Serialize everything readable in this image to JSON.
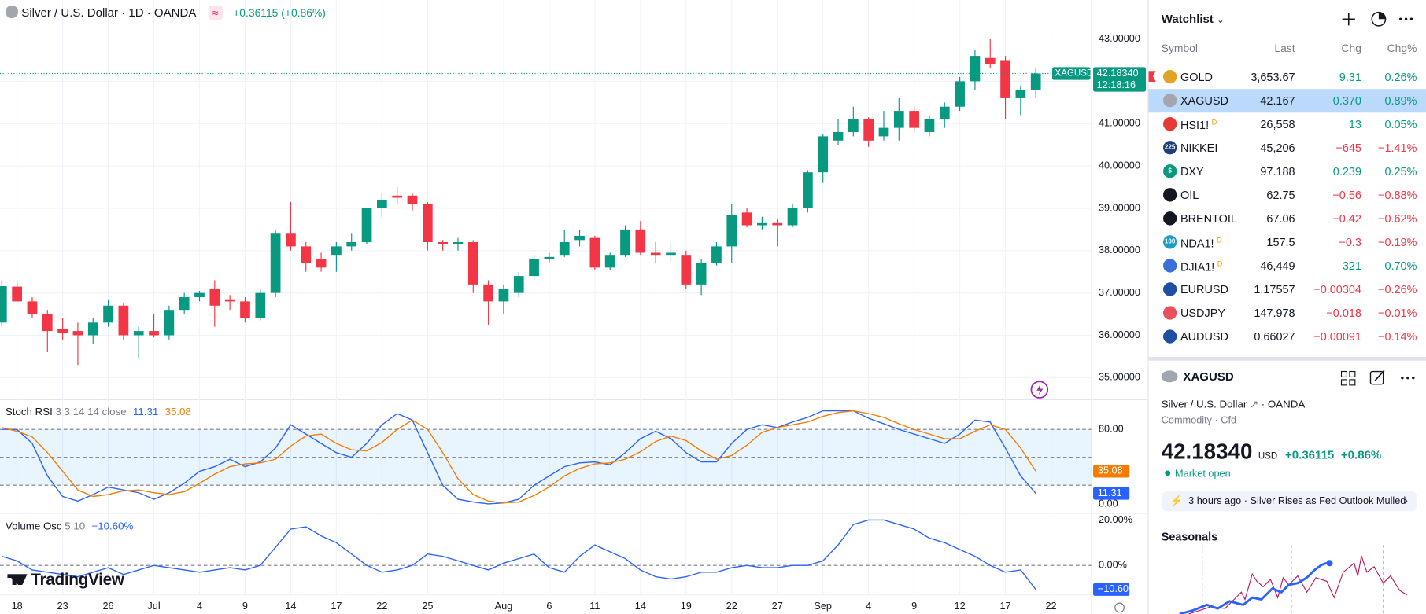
{
  "header": {
    "title": "Silver / U.S. Dollar · 1D · OANDA",
    "change": "+0.36115 (+0.86%)"
  },
  "logo": "TradingView",
  "chart_data": [
    {
      "type": "candlestick",
      "symbol": "XAGUSD",
      "countdown": "12:18:16",
      "up_color": "#089981",
      "down_color": "#f23645",
      "grid": true,
      "ylim": [
        34.48,
        43.92
      ],
      "yticks": [
        {
          "value": 35,
          "label": "35.00000"
        },
        {
          "value": 36,
          "label": "36.00000"
        },
        {
          "value": 37,
          "label": "37.00000"
        },
        {
          "value": 38,
          "label": "38.00000"
        },
        {
          "value": 39,
          "label": "39.00000"
        },
        {
          "value": 40,
          "label": "40.00000"
        },
        {
          "value": 41,
          "label": "41.00000"
        },
        {
          "value": 42,
          "label": "42.00000"
        },
        {
          "value": 43,
          "label": "43.00000"
        }
      ],
      "xlim": [
        -0.12,
        71.65
      ],
      "xticks": [
        {
          "value": 1,
          "label": "18"
        },
        {
          "value": 4,
          "label": "23"
        },
        {
          "value": 7,
          "label": "26"
        },
        {
          "value": 10,
          "label": "Jul"
        },
        {
          "value": 13,
          "label": "4"
        },
        {
          "value": 16,
          "label": "9"
        },
        {
          "value": 19,
          "label": "14"
        },
        {
          "value": 22,
          "label": "17"
        },
        {
          "value": 25,
          "label": "22"
        },
        {
          "value": 28,
          "label": "25"
        },
        {
          "value": 33,
          "label": "Aug"
        },
        {
          "value": 36,
          "label": "6"
        },
        {
          "value": 39,
          "label": "11"
        },
        {
          "value": 42,
          "label": "14"
        },
        {
          "value": 45,
          "label": "19"
        },
        {
          "value": 48,
          "label": "22"
        },
        {
          "value": 51,
          "label": "27"
        },
        {
          "value": 54,
          "label": "Sep"
        },
        {
          "value": 57,
          "label": "4"
        },
        {
          "value": 60,
          "label": "9"
        },
        {
          "value": 63,
          "label": "12"
        },
        {
          "value": 66,
          "label": "17"
        },
        {
          "value": 69,
          "label": "22"
        }
      ],
      "ohlc": [
        [
          36.3,
          37.3,
          36.2,
          37.16
        ],
        [
          37.15,
          37.3,
          36.75,
          36.8
        ],
        [
          36.8,
          36.9,
          36.4,
          36.5
        ],
        [
          36.5,
          36.6,
          35.6,
          36.1
        ],
        [
          36.15,
          36.4,
          35.9,
          36.05
        ],
        [
          36.1,
          36.3,
          35.3,
          36.0
        ],
        [
          36.0,
          36.4,
          35.8,
          36.3
        ],
        [
          36.3,
          36.85,
          36.2,
          36.7
        ],
        [
          36.7,
          36.75,
          35.9,
          36.0
        ],
        [
          36.0,
          36.2,
          35.45,
          36.1
        ],
        [
          36.1,
          36.5,
          35.95,
          36.0
        ],
        [
          36.0,
          36.7,
          35.9,
          36.6
        ],
        [
          36.6,
          37.0,
          36.5,
          36.9
        ],
        [
          36.9,
          37.05,
          36.8,
          37.0
        ],
        [
          37.1,
          37.3,
          36.2,
          36.7
        ],
        [
          36.85,
          36.95,
          36.6,
          36.8
        ],
        [
          36.8,
          36.9,
          36.3,
          36.4
        ],
        [
          36.4,
          37.1,
          36.35,
          37.0
        ],
        [
          37.0,
          38.5,
          36.9,
          38.4
        ],
        [
          38.4,
          39.15,
          38.0,
          38.1
        ],
        [
          38.1,
          38.2,
          37.5,
          37.7
        ],
        [
          37.8,
          37.95,
          37.5,
          37.6
        ],
        [
          37.9,
          38.2,
          37.5,
          38.1
        ],
        [
          38.1,
          38.4,
          38.0,
          38.2
        ],
        [
          38.2,
          39.0,
          38.15,
          39.0
        ],
        [
          39.0,
          39.35,
          38.8,
          39.2
        ],
        [
          39.3,
          39.5,
          39.1,
          39.25
        ],
        [
          39.3,
          39.35,
          38.95,
          39.1
        ],
        [
          39.1,
          39.15,
          38.0,
          38.2
        ],
        [
          38.2,
          38.25,
          38.0,
          38.15
        ],
        [
          38.15,
          38.3,
          38.0,
          38.2
        ],
        [
          38.2,
          38.25,
          37.0,
          37.2
        ],
        [
          37.2,
          37.3,
          36.25,
          36.8
        ],
        [
          36.8,
          37.2,
          36.5,
          37.1
        ],
        [
          37.0,
          37.5,
          36.9,
          37.4
        ],
        [
          37.4,
          37.9,
          37.3,
          37.8
        ],
        [
          37.8,
          37.95,
          37.7,
          37.85
        ],
        [
          37.9,
          38.5,
          37.85,
          38.2
        ],
        [
          38.25,
          38.5,
          38.1,
          38.35
        ],
        [
          38.3,
          38.35,
          37.55,
          37.6
        ],
        [
          37.6,
          37.95,
          37.55,
          37.9
        ],
        [
          37.9,
          38.6,
          37.85,
          38.5
        ],
        [
          38.5,
          38.7,
          37.9,
          37.95
        ],
        [
          37.95,
          38.2,
          37.7,
          37.9
        ],
        [
          37.9,
          38.2,
          37.75,
          37.95
        ],
        [
          37.9,
          38.0,
          37.1,
          37.2
        ],
        [
          37.2,
          37.8,
          36.95,
          37.7
        ],
        [
          37.7,
          38.2,
          37.65,
          38.1
        ],
        [
          38.1,
          39.1,
          37.7,
          38.85
        ],
        [
          38.9,
          39.0,
          38.55,
          38.6
        ],
        [
          38.6,
          38.8,
          38.5,
          38.65
        ],
        [
          38.65,
          38.75,
          38.1,
          38.6
        ],
        [
          38.6,
          39.1,
          38.55,
          39.0
        ],
        [
          39.0,
          39.9,
          38.9,
          39.85
        ],
        [
          39.85,
          40.75,
          39.6,
          40.7
        ],
        [
          40.6,
          41.1,
          40.5,
          40.8
        ],
        [
          40.8,
          41.4,
          40.7,
          41.1
        ],
        [
          41.1,
          41.15,
          40.45,
          40.6
        ],
        [
          40.7,
          41.3,
          40.6,
          40.9
        ],
        [
          40.9,
          41.6,
          40.6,
          41.3
        ],
        [
          41.3,
          41.4,
          40.8,
          40.9
        ],
        [
          40.8,
          41.2,
          40.7,
          41.1
        ],
        [
          41.1,
          41.5,
          40.9,
          41.4
        ],
        [
          41.4,
          42.1,
          41.3,
          42.0
        ],
        [
          42.0,
          42.75,
          41.8,
          42.6
        ],
        [
          42.55,
          43.0,
          42.3,
          42.4
        ],
        [
          42.5,
          42.6,
          41.1,
          41.6
        ],
        [
          41.6,
          41.9,
          41.2,
          41.8
        ],
        [
          41.8,
          42.3,
          41.6,
          42.1834
        ]
      ],
      "value_labels": {
        "68": "42.18340"
      }
    },
    {
      "type": "line",
      "title": "Stoch RSI",
      "params": "3 3 14 14 close",
      "grid": false,
      "ylim": [
        -10,
        112
      ],
      "yticks": [
        {
          "value": 0,
          "label": "0.00"
        },
        {
          "value": 80,
          "label": "80.00"
        }
      ],
      "bands": [
        20,
        50,
        80
      ],
      "band_color": "rgba(33,150,243,0.1)",
      "series": [
        {
          "color": "#2962ff",
          "values": [
            80,
            80,
            65,
            30,
            8,
            3,
            10,
            18,
            15,
            12,
            5,
            12,
            22,
            35,
            40,
            48,
            40,
            45,
            60,
            85,
            75,
            65,
            55,
            50,
            65,
            85,
            97,
            90,
            55,
            20,
            5,
            2,
            0,
            1,
            5,
            20,
            30,
            40,
            44,
            45,
            42,
            55,
            70,
            78,
            70,
            55,
            45,
            45,
            65,
            80,
            85,
            82,
            88,
            93,
            100,
            100,
            100,
            92,
            86,
            80,
            75,
            70,
            65,
            75,
            90,
            88,
            60,
            30,
            11.31
          ]
        },
        {
          "color": "#f57c00",
          "values": [
            82,
            78,
            72,
            55,
            35,
            15,
            8,
            10,
            14,
            15,
            12,
            10,
            13,
            22,
            32,
            40,
            43,
            44,
            48,
            62,
            73,
            75,
            65,
            58,
            57,
            66,
            80,
            90,
            80,
            55,
            27,
            10,
            3,
            1,
            2,
            9,
            18,
            30,
            38,
            43,
            44,
            48,
            56,
            67,
            73,
            68,
            57,
            48,
            52,
            63,
            77,
            82,
            85,
            88,
            94,
            98,
            100,
            97,
            93,
            86,
            80,
            75,
            70,
            70,
            78,
            85,
            80,
            60,
            35.08
          ]
        }
      ]
    },
    {
      "type": "line",
      "title": "Volume Osc",
      "params": "5 10",
      "grid": false,
      "ylim": [
        -13,
        23
      ],
      "yticks": [
        {
          "value": 0,
          "label": "0.00%"
        },
        {
          "value": 20,
          "label": "20.00%"
        }
      ],
      "baseline": 0,
      "series": [
        {
          "color": "#2962ff",
          "values": [
            4,
            2,
            -2,
            -3,
            -4,
            -5,
            -3,
            -1,
            -4,
            -2,
            0,
            -1,
            -2,
            -3,
            -2,
            -1,
            -2,
            0,
            8,
            16,
            17,
            13,
            10,
            5,
            0,
            -3,
            -2,
            0,
            5,
            4,
            2,
            0,
            -2,
            1,
            3,
            5,
            -1,
            -3,
            4,
            9,
            6,
            3,
            -2,
            -5,
            -6,
            -5,
            -3,
            -3,
            -1,
            0,
            -1,
            -1,
            0,
            0,
            2,
            9,
            18,
            20,
            20,
            18,
            16,
            12,
            10,
            7,
            4,
            0,
            -3,
            -2,
            -10.6
          ],
          "value_labels": {
            "68": "−10.60%"
          }
        }
      ]
    }
  ],
  "watchlist": {
    "title": "Watchlist",
    "columns": [
      "Symbol",
      "Last",
      "Chg",
      "Chg%"
    ],
    "rows": [
      {
        "symbol": "GOLD",
        "last": "3,653.67",
        "chg": "9.31",
        "chg_pct": "0.26%",
        "icon_color": "#e0a526",
        "flagged": true
      },
      {
        "symbol": "XAGUSD",
        "last": "42.167",
        "chg": "0.370",
        "chg_pct": "0.89%",
        "icon_color": "#a3a6af",
        "selected": true
      },
      {
        "symbol": "HSI1!",
        "badge": "D",
        "last": "26,558",
        "chg": "13",
        "chg_pct": "0.05%",
        "icon_color": "#e53935"
      },
      {
        "symbol": "NIKKEI",
        "icon_text": "225",
        "last": "45,206",
        "chg": "−645",
        "chg_pct": "−1.41%",
        "icon_color": "#1e3f7a"
      },
      {
        "symbol": "DXY",
        "icon_text": "$",
        "last": "97.188",
        "chg": "0.239",
        "chg_pct": "0.25%",
        "icon_color": "#089981"
      },
      {
        "symbol": "OIL",
        "last": "62.75",
        "chg": "−0.56",
        "chg_pct": "−0.88%",
        "icon_color": "#131722"
      },
      {
        "symbol": "BRENTOIL",
        "last": "67.06",
        "chg": "−0.42",
        "chg_pct": "−0.62%",
        "icon_color": "#131722"
      },
      {
        "symbol": "NDA1!",
        "icon_text": "100",
        "badge": "D",
        "last": "157.5",
        "chg": "−0.3",
        "chg_pct": "−0.19%",
        "icon_color": "#1b9cc7"
      },
      {
        "symbol": "DJIA1!",
        "badge": "D",
        "last": "46,449",
        "chg": "321",
        "chg_pct": "0.70%",
        "icon_color": "#3c6fd8"
      },
      {
        "symbol": "EURUSD",
        "last": "1.17557",
        "chg": "−0.00304",
        "chg_pct": "−0.26%",
        "icon_color": "#1e4fa0"
      },
      {
        "symbol": "USDJPY",
        "last": "147.978",
        "chg": "−0.018",
        "chg_pct": "−0.01%",
        "icon_color": "#e8505b"
      },
      {
        "symbol": "AUDUSD",
        "last": "0.66027",
        "chg": "−0.00091",
        "chg_pct": "−0.14%",
        "icon_color": "#1e4fa0"
      }
    ]
  },
  "details": {
    "symbol": "XAGUSD",
    "name": "Silver / U.S. Dollar",
    "exchange": "OANDA",
    "category": "Commodity",
    "kind": "Cfd",
    "price": "42.18340",
    "currency": "USD",
    "change": "+0.36115",
    "change_pct": "+0.86%",
    "status": "Market open",
    "news_time": "3 hours ago",
    "news_title": "Silver Rises as Fed Outlook Mulled",
    "seasonals": "Seasonals"
  }
}
